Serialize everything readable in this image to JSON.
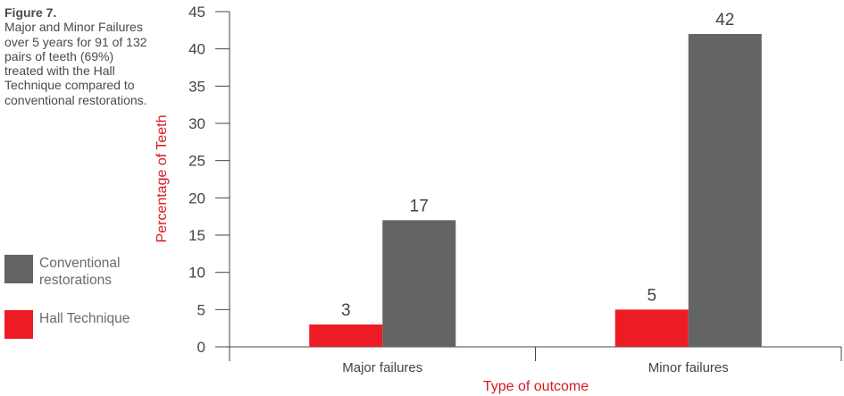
{
  "caption": {
    "figure_label": "Figure 7.",
    "text": "Major and Minor Failures over 5 years for 91 of 132 pairs of teeth (69%) treated with the Hall Technique compared to conventional restorations."
  },
  "chart_data": {
    "type": "bar",
    "categories": [
      "Major failures",
      "Minor failures"
    ],
    "series": [
      {
        "name": "Hall Technique",
        "values": [
          3,
          5
        ],
        "color": "#ed1c24"
      },
      {
        "name": "Conventional restorations",
        "values": [
          17,
          42
        ],
        "color": "#636466"
      }
    ],
    "data_labels": [
      [
        "3",
        "5"
      ],
      [
        "17",
        "42"
      ]
    ],
    "xlabel": "Type of outcome",
    "ylabel": "Percentage of Teeth",
    "ylim": [
      0,
      45
    ],
    "yticks": [
      0,
      5,
      10,
      15,
      20,
      25,
      30,
      35,
      40,
      45
    ],
    "grid": false,
    "legend_position": "left"
  },
  "legend": [
    {
      "label": "Conventional\nrestorations",
      "color": "#636466"
    },
    {
      "label": "Hall Technique",
      "color": "#ed1c24"
    }
  ],
  "colors": {
    "axis_title": "#d7191f",
    "axis": "#444444",
    "text": "#444444"
  }
}
